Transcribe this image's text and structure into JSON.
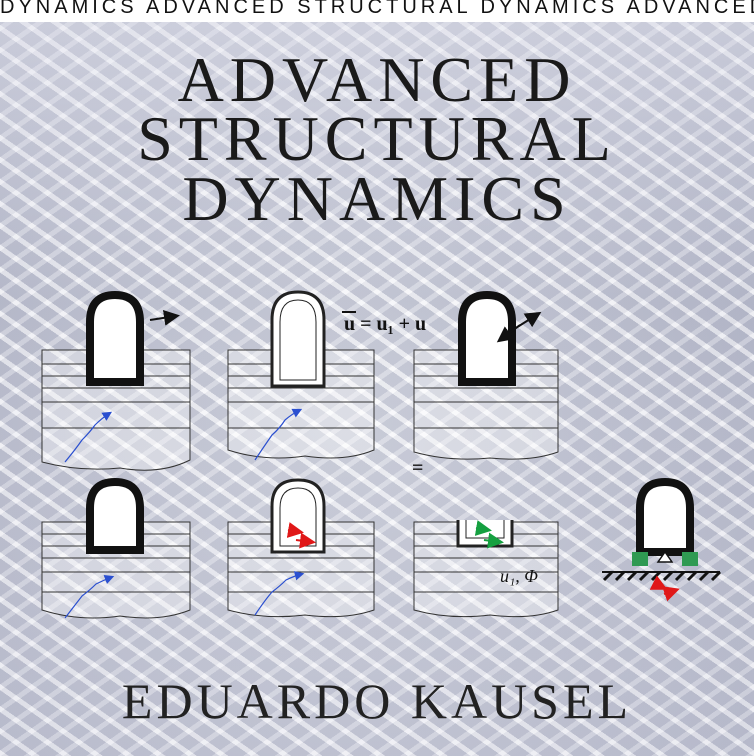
{
  "top_strip_text": "DYNAMICS  ADVANCED STRUCTURAL DYNAMICS  ADVANCED STRUCTURAL DYNAMICS",
  "title": {
    "line1": "ADVANCED",
    "line2": "STRUCTURAL",
    "line3": "DYNAMICS"
  },
  "author": "EDUARDO KAUSEL",
  "diagram": {
    "equation": "u = u₁ + u",
    "equals_sign": "=",
    "bottom_label": "u₁, Φ"
  },
  "colors": {
    "wave_arrow": "#2a4fd0",
    "red_arrow": "#e01818",
    "green_arrow": "#15a040",
    "spring_green": "#2f9a52"
  }
}
